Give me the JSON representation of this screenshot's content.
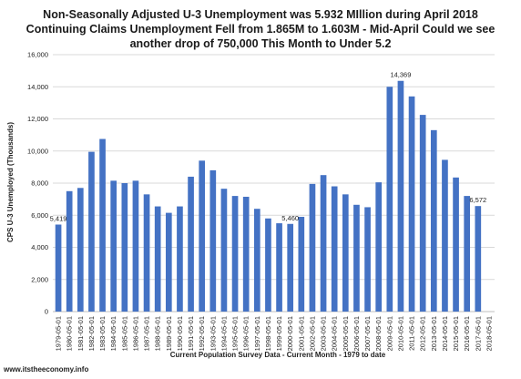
{
  "chart_data": {
    "type": "bar",
    "title_lines": [
      "Non-Seasonally Adjusted U-3 Unemployment was 5.932 MIllion during April 2018",
      "Continuing Claims Unemployment Fell from 1.865M to 1.603M - Mid-April  Could we see",
      "another drop of 750,000 This Month to Under 5.2"
    ],
    "xlabel": "Current Population Survey Data - Current Month - 1979 to date",
    "ylabel": "CPS U-3 Unemployed (Thousands)",
    "ylim": [
      0,
      16000
    ],
    "yticks": [
      0,
      2000,
      4000,
      6000,
      8000,
      10000,
      12000,
      14000,
      16000
    ],
    "ytick_labels": [
      "0",
      "2,000",
      "4,000",
      "6,000",
      "8,000",
      "10,000",
      "12,000",
      "14,000",
      "16,000"
    ],
    "grid": true,
    "bar_color": "#4472c4",
    "categories": [
      "1979-05-01",
      "1980-05-01",
      "1981-05-01",
      "1982-05-01",
      "1983-05-01",
      "1984-05-01",
      "1985-05-01",
      "1986-05-01",
      "1987-05-01",
      "1988-05-01",
      "1989-05-01",
      "1990-05-01",
      "1991-05-01",
      "1992-05-01",
      "1993-05-01",
      "1994-05-01",
      "1995-05-01",
      "1996-05-01",
      "1997-05-01",
      "1998-05-01",
      "1999-05-01",
      "2000-05-01",
      "2001-05-01",
      "2002-05-01",
      "2003-05-01",
      "2004-05-01",
      "2005-05-01",
      "2006-05-01",
      "2007-05-01",
      "2008-05-01",
      "2009-05-01",
      "2010-05-01",
      "2011-05-01",
      "2012-05-01",
      "2013-05-01",
      "2014-05-01",
      "2015-05-01",
      "2016-05-01",
      "2017-05-01",
      "2018-05-01"
    ],
    "values": [
      5419,
      7500,
      7700,
      9950,
      10750,
      8150,
      8000,
      8150,
      7300,
      6550,
      6150,
      6550,
      8400,
      9400,
      8800,
      7650,
      7200,
      7150,
      6400,
      5800,
      5500,
      5460,
      5900,
      7950,
      8500,
      7800,
      7300,
      6650,
      6500,
      8050,
      14000,
      14369,
      13400,
      12250,
      11300,
      9450,
      8350,
      7200,
      6572,
      null
    ],
    "data_labels": [
      {
        "index": 0,
        "text": "5,419"
      },
      {
        "index": 21,
        "text": "5,460"
      },
      {
        "index": 31,
        "text": "14,369"
      },
      {
        "index": 38,
        "text": "6,572"
      }
    ]
  },
  "footer": "www.itstheeconomy.info"
}
